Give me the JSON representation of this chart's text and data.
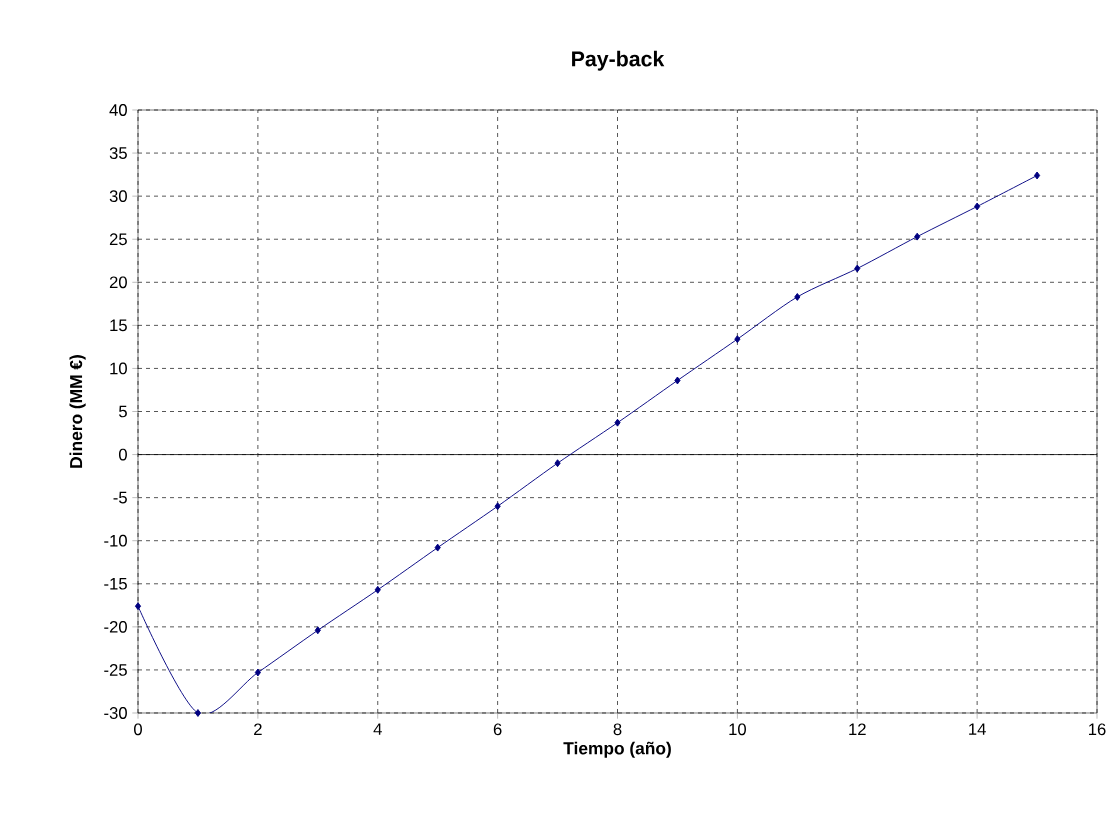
{
  "chart_data": {
    "type": "line",
    "title": "Pay-back",
    "xlabel": "Tiempo (año)",
    "ylabel": "Dinero (MM €)",
    "x": [
      0,
      1,
      2,
      3,
      4,
      5,
      6,
      7,
      8,
      9,
      10,
      11,
      12,
      13,
      14,
      15
    ],
    "series": [
      {
        "color": "#000080",
        "values": [
          -17.6,
          -30.0,
          -25.3,
          -20.4,
          -15.7,
          -10.8,
          -6.0,
          -1.0,
          3.7,
          8.6,
          13.4,
          18.3,
          21.6,
          25.3,
          28.8,
          32.4
        ]
      }
    ],
    "xlim": [
      0,
      16
    ],
    "ylim": [
      -30,
      40
    ],
    "xticks": [
      0,
      2,
      4,
      6,
      8,
      10,
      12,
      14,
      16
    ],
    "yticks": [
      -30,
      -25,
      -20,
      -15,
      -10,
      -5,
      0,
      5,
      10,
      15,
      20,
      25,
      30,
      35,
      40
    ],
    "grid": true,
    "marker": "diamond",
    "line_style": "solid"
  }
}
